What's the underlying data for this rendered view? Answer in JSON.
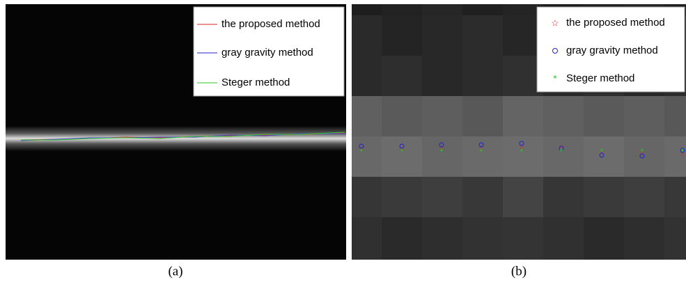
{
  "panels": [
    {
      "caption": "(a)",
      "legend": [
        "the proposed method",
        "gray gravity method",
        "Steger method"
      ]
    },
    {
      "caption": "(b)",
      "legend": [
        "the proposed method",
        "gray gravity method",
        "Steger method"
      ]
    }
  ]
}
